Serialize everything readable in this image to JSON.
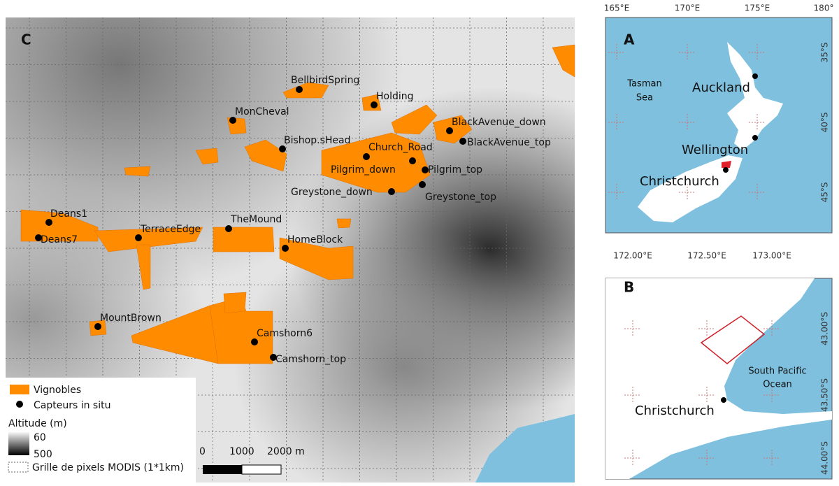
{
  "panel_c": {
    "letter": "C",
    "sensors": [
      "BellbirdSpring",
      "Holding",
      "MonCheval",
      "BlackAvenue_down",
      "BlackAvenue_top",
      "Bishop.sHead",
      "Church_Road",
      "Pilgrim_down",
      "Pilgrim_top",
      "Greystone_down",
      "Greystone_top",
      "Deans1",
      "Deans7",
      "TerraceEdge",
      "TheMound",
      "HomeBlock",
      "MountBrown",
      "Camshorn6",
      "Camshorn_top"
    ],
    "legend": {
      "vineyards": "Vignobles",
      "sensors": "Capteurs in situ",
      "altitude_title": "Altitude (m)",
      "altitude_top": "60",
      "altitude_bottom": "500",
      "grid": "Grille de pixels MODIS (1*1km)"
    },
    "scale_bar": [
      "0",
      "1000",
      "2000 m"
    ]
  },
  "panel_a": {
    "letter": "A",
    "lon_labels": [
      "165°E",
      "170°E",
      "175°E",
      "180°"
    ],
    "lat_labels": [
      "35°S",
      "40°S",
      "45°S"
    ],
    "sea_label": [
      "Tasman",
      "Sea"
    ],
    "cities": [
      "Auckland",
      "Wellington",
      "Christchurch"
    ]
  },
  "panel_b": {
    "letter": "B",
    "lon_labels": [
      "172.00°E",
      "172.50°E",
      "173.00°E"
    ],
    "lat_labels": [
      "43.00°S",
      "43.50°S",
      "44.00°S"
    ],
    "ocean_label": [
      "South Pacific",
      "Ocean"
    ],
    "city": "Christchurch"
  }
}
